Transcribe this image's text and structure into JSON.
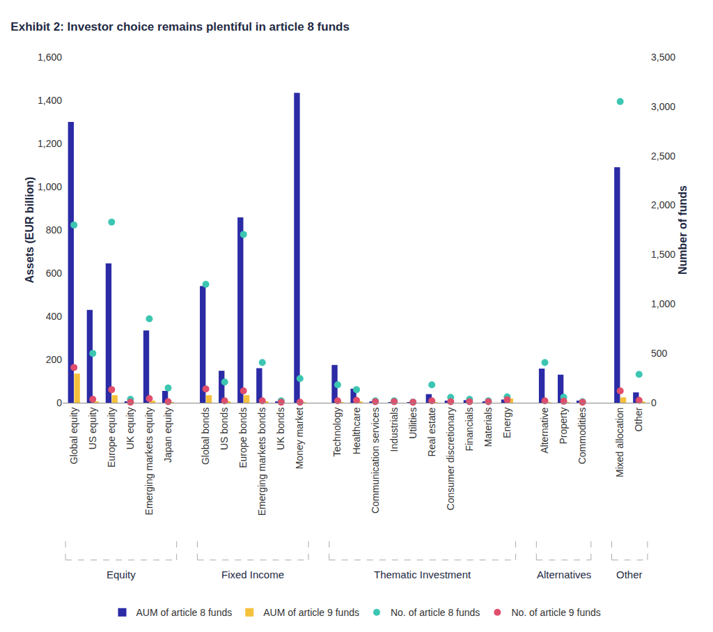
{
  "chart_data": {
    "type": "bar",
    "title": "Exhibit 2: Investor choice remains plentiful in article 8 funds",
    "y_label": "Assets (EUR billion)",
    "y2_label": "Number of funds",
    "categories": [
      "Global equity",
      "US equity",
      "Europe equity",
      "UK equity",
      "Emerging markets equity",
      "Japan equity",
      null,
      "Global bonds",
      "US bonds",
      "Europe bonds",
      "Emerging markets bonds",
      "UK bonds",
      "Money market",
      null,
      "Technology",
      "Healthcare",
      "Communication services",
      "Industrials",
      "Utilities",
      "Real estate",
      "Consumer discretionary",
      "Financials",
      "Materials",
      "Energy",
      null,
      "Alternative",
      "Property",
      "Commodities",
      null,
      "Mixed allocation",
      "Other"
    ],
    "groups": [
      {
        "name": "Equity",
        "first": "Global equity",
        "last": "Japan equity"
      },
      {
        "name": "Fixed Income",
        "first": "Global bonds",
        "last": "Money market"
      },
      {
        "name": "Thematic Investment",
        "first": "Technology",
        "last": "Energy"
      },
      {
        "name": "Alternatives",
        "first": "Alternative",
        "last": "Commodities"
      },
      {
        "name": "Other",
        "first": "Mixed allocation",
        "last": "Other"
      }
    ],
    "series": [
      {
        "name": "AUM of article 8 funds",
        "type": "bar",
        "axis": "y",
        "color": "#2b2ba6",
        "values": [
          1300,
          430,
          645,
          5,
          335,
          55,
          null,
          540,
          148,
          858,
          160,
          5,
          1435,
          null,
          175,
          65,
          5,
          3,
          3,
          40,
          10,
          12,
          5,
          15,
          null,
          158,
          130,
          10,
          null,
          1090,
          48
        ]
      },
      {
        "name": "AUM of article 9 funds",
        "type": "bar",
        "axis": "y",
        "color": "#f5c13c",
        "values": [
          135,
          5,
          35,
          0,
          10,
          2,
          null,
          35,
          5,
          35,
          5,
          0,
          2,
          null,
          2,
          5,
          0,
          0,
          0,
          2,
          0,
          0,
          0,
          20,
          null,
          2,
          2,
          0,
          null,
          25,
          5
        ]
      },
      {
        "name": "No. of article 8 funds",
        "type": "scatter",
        "marker": "circle",
        "axis": "y2",
        "color": "#3cc6b2",
        "values": [
          1800,
          500,
          1830,
          35,
          850,
          150,
          null,
          1200,
          210,
          1705,
          407,
          20,
          245,
          null,
          182,
          133,
          20,
          20,
          7,
          182,
          55,
          35,
          20,
          60,
          null,
          407,
          56,
          10,
          null,
          3050,
          287
        ]
      },
      {
        "name": "No. of article 9 funds",
        "type": "scatter",
        "marker": "circle",
        "axis": "y2",
        "color": "#e04e6c",
        "values": [
          357,
          35,
          133,
          5,
          42,
          10,
          null,
          140,
          20,
          120,
          20,
          5,
          5,
          null,
          20,
          25,
          10,
          10,
          5,
          20,
          10,
          10,
          10,
          30,
          null,
          20,
          15,
          5,
          null,
          120,
          25
        ]
      }
    ],
    "ylim": [
      0,
      1600
    ],
    "yticks": [
      0,
      200,
      400,
      600,
      800,
      {
        "value": 1000,
        "label": "1,000"
      },
      {
        "value": 1200,
        "label": "1,200"
      },
      {
        "value": 1400,
        "label": "1,400"
      },
      {
        "value": 1600,
        "label": "1,600"
      }
    ],
    "y2lim": [
      0,
      3500
    ],
    "y2ticks": [
      0,
      500,
      {
        "value": 1000,
        "label": "1,000"
      },
      {
        "value": 1500,
        "label": "1,500"
      },
      {
        "value": 2000,
        "label": "2,000"
      },
      {
        "value": 2500,
        "label": "2,500"
      },
      {
        "value": 3000,
        "label": "3,000"
      },
      {
        "value": 3500,
        "label": "3,500"
      }
    ],
    "grid": false,
    "legend": "bottom"
  }
}
